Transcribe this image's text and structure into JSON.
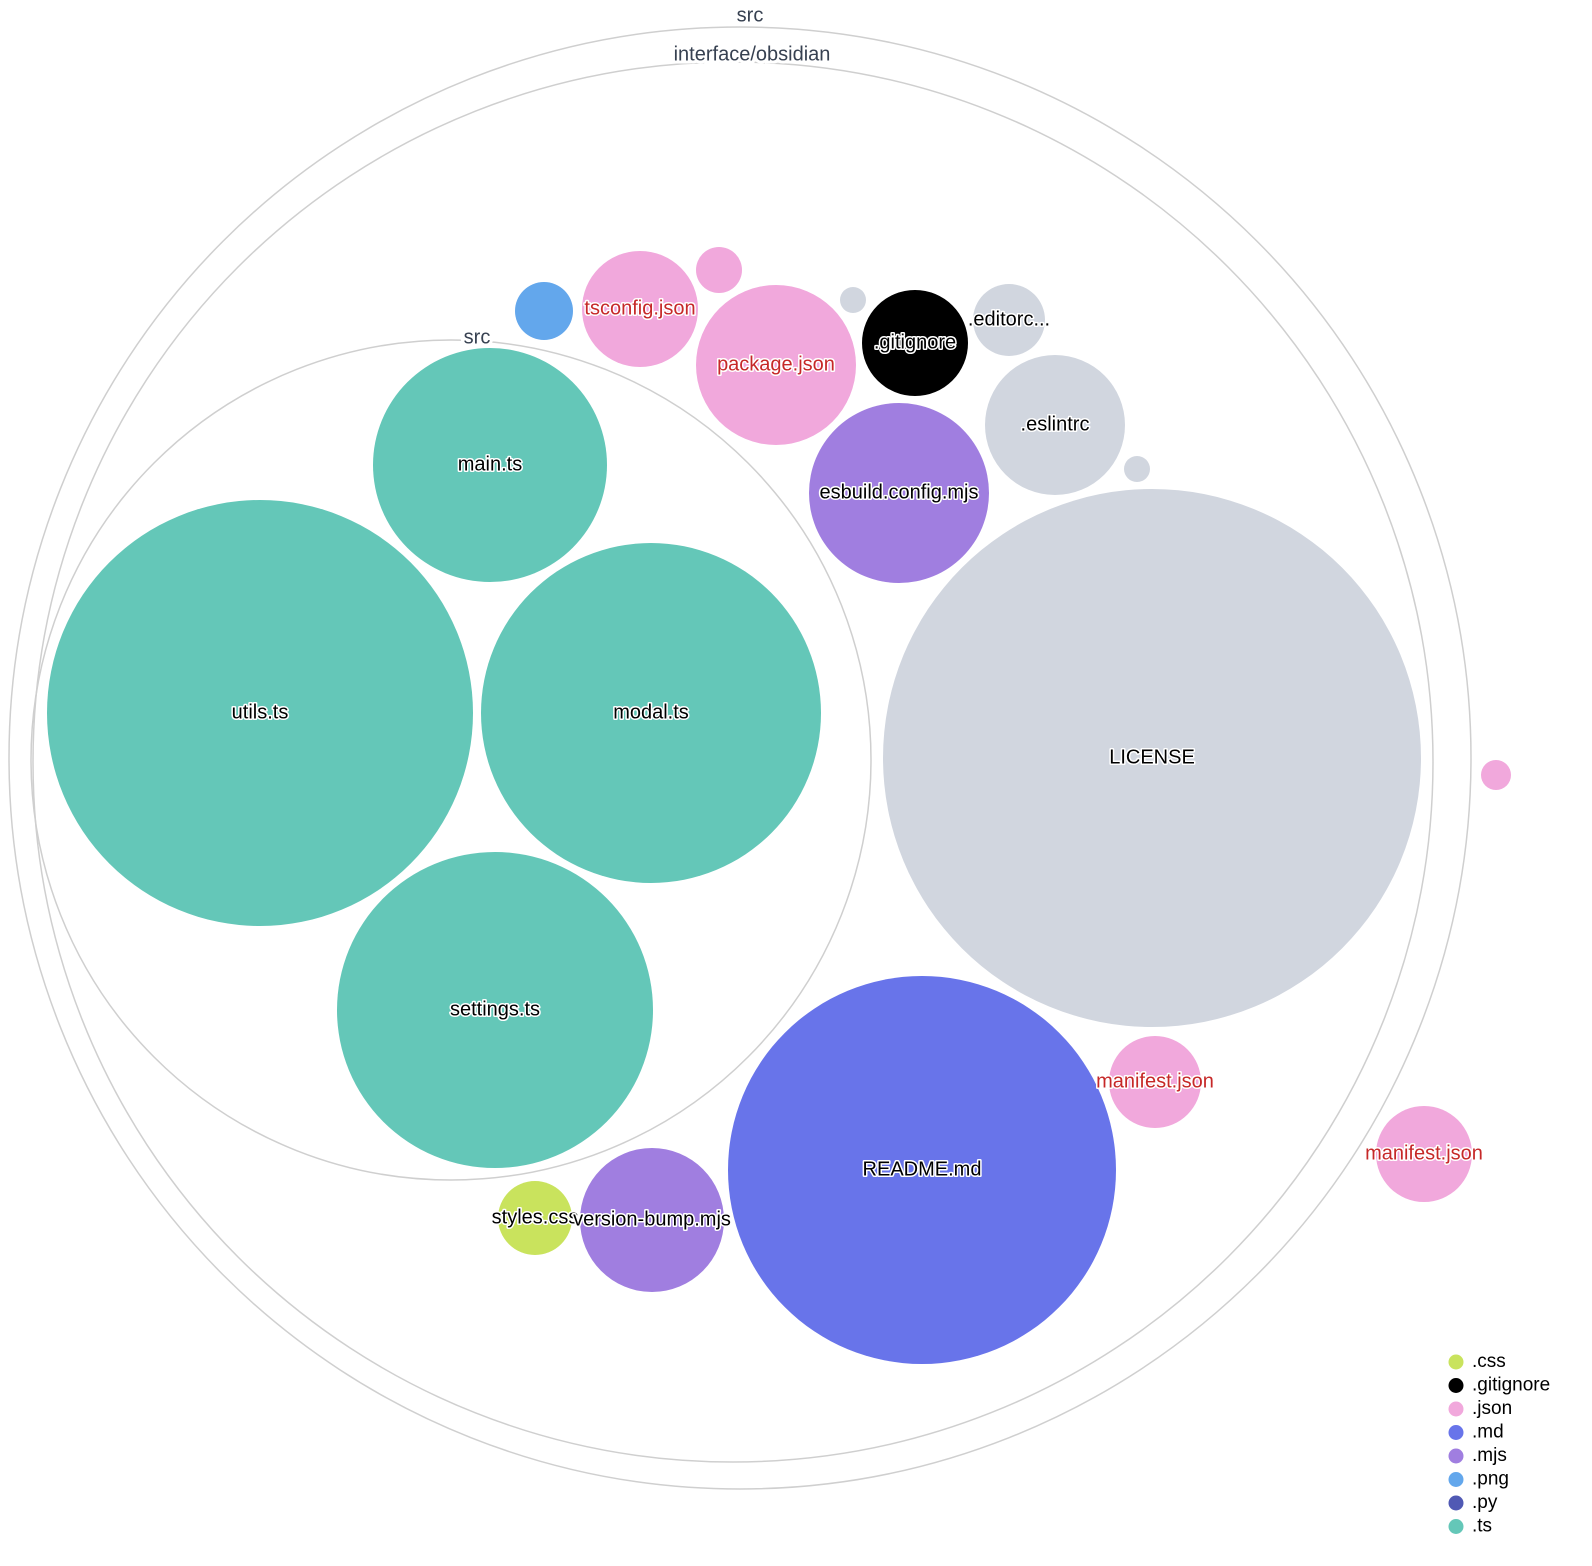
{
  "root": {
    "label": "src"
  },
  "folders": [
    {
      "label": "interface/obsidian"
    },
    {
      "label": "src"
    }
  ],
  "files": [
    {
      "label": "main.ts"
    },
    {
      "label": "utils.ts"
    },
    {
      "label": "modal.ts"
    },
    {
      "label": "settings.ts"
    },
    {
      "label": "LICENSE"
    },
    {
      "label": "README.md"
    },
    {
      "label": "manifest.json"
    },
    {
      "label": "manifest.json"
    },
    {
      "label": "styles.css"
    },
    {
      "label": "version-bump.mjs"
    },
    {
      "label": "esbuild.config.mjs"
    },
    {
      "label": ".eslintrc"
    },
    {
      "label": ".gitignore"
    },
    {
      "label": ".editorc..."
    },
    {
      "label": "package.json"
    },
    {
      "label": "tsconfig.json"
    }
  ],
  "legend": [
    {
      "label": ".css",
      "color": "#c9e35d"
    },
    {
      "label": ".gitignore",
      "color": "#000000"
    },
    {
      "label": ".json",
      "color": "#f1a8dc"
    },
    {
      "label": ".md",
      "color": "#6874ea"
    },
    {
      "label": ".mjs",
      "color": "#a07ee0"
    },
    {
      "label": ".png",
      "color": "#63a7ec"
    },
    {
      "label": ".py",
      "color": "#5059b4"
    },
    {
      "label": ".ts",
      "color": "#64c7b8"
    }
  ]
}
